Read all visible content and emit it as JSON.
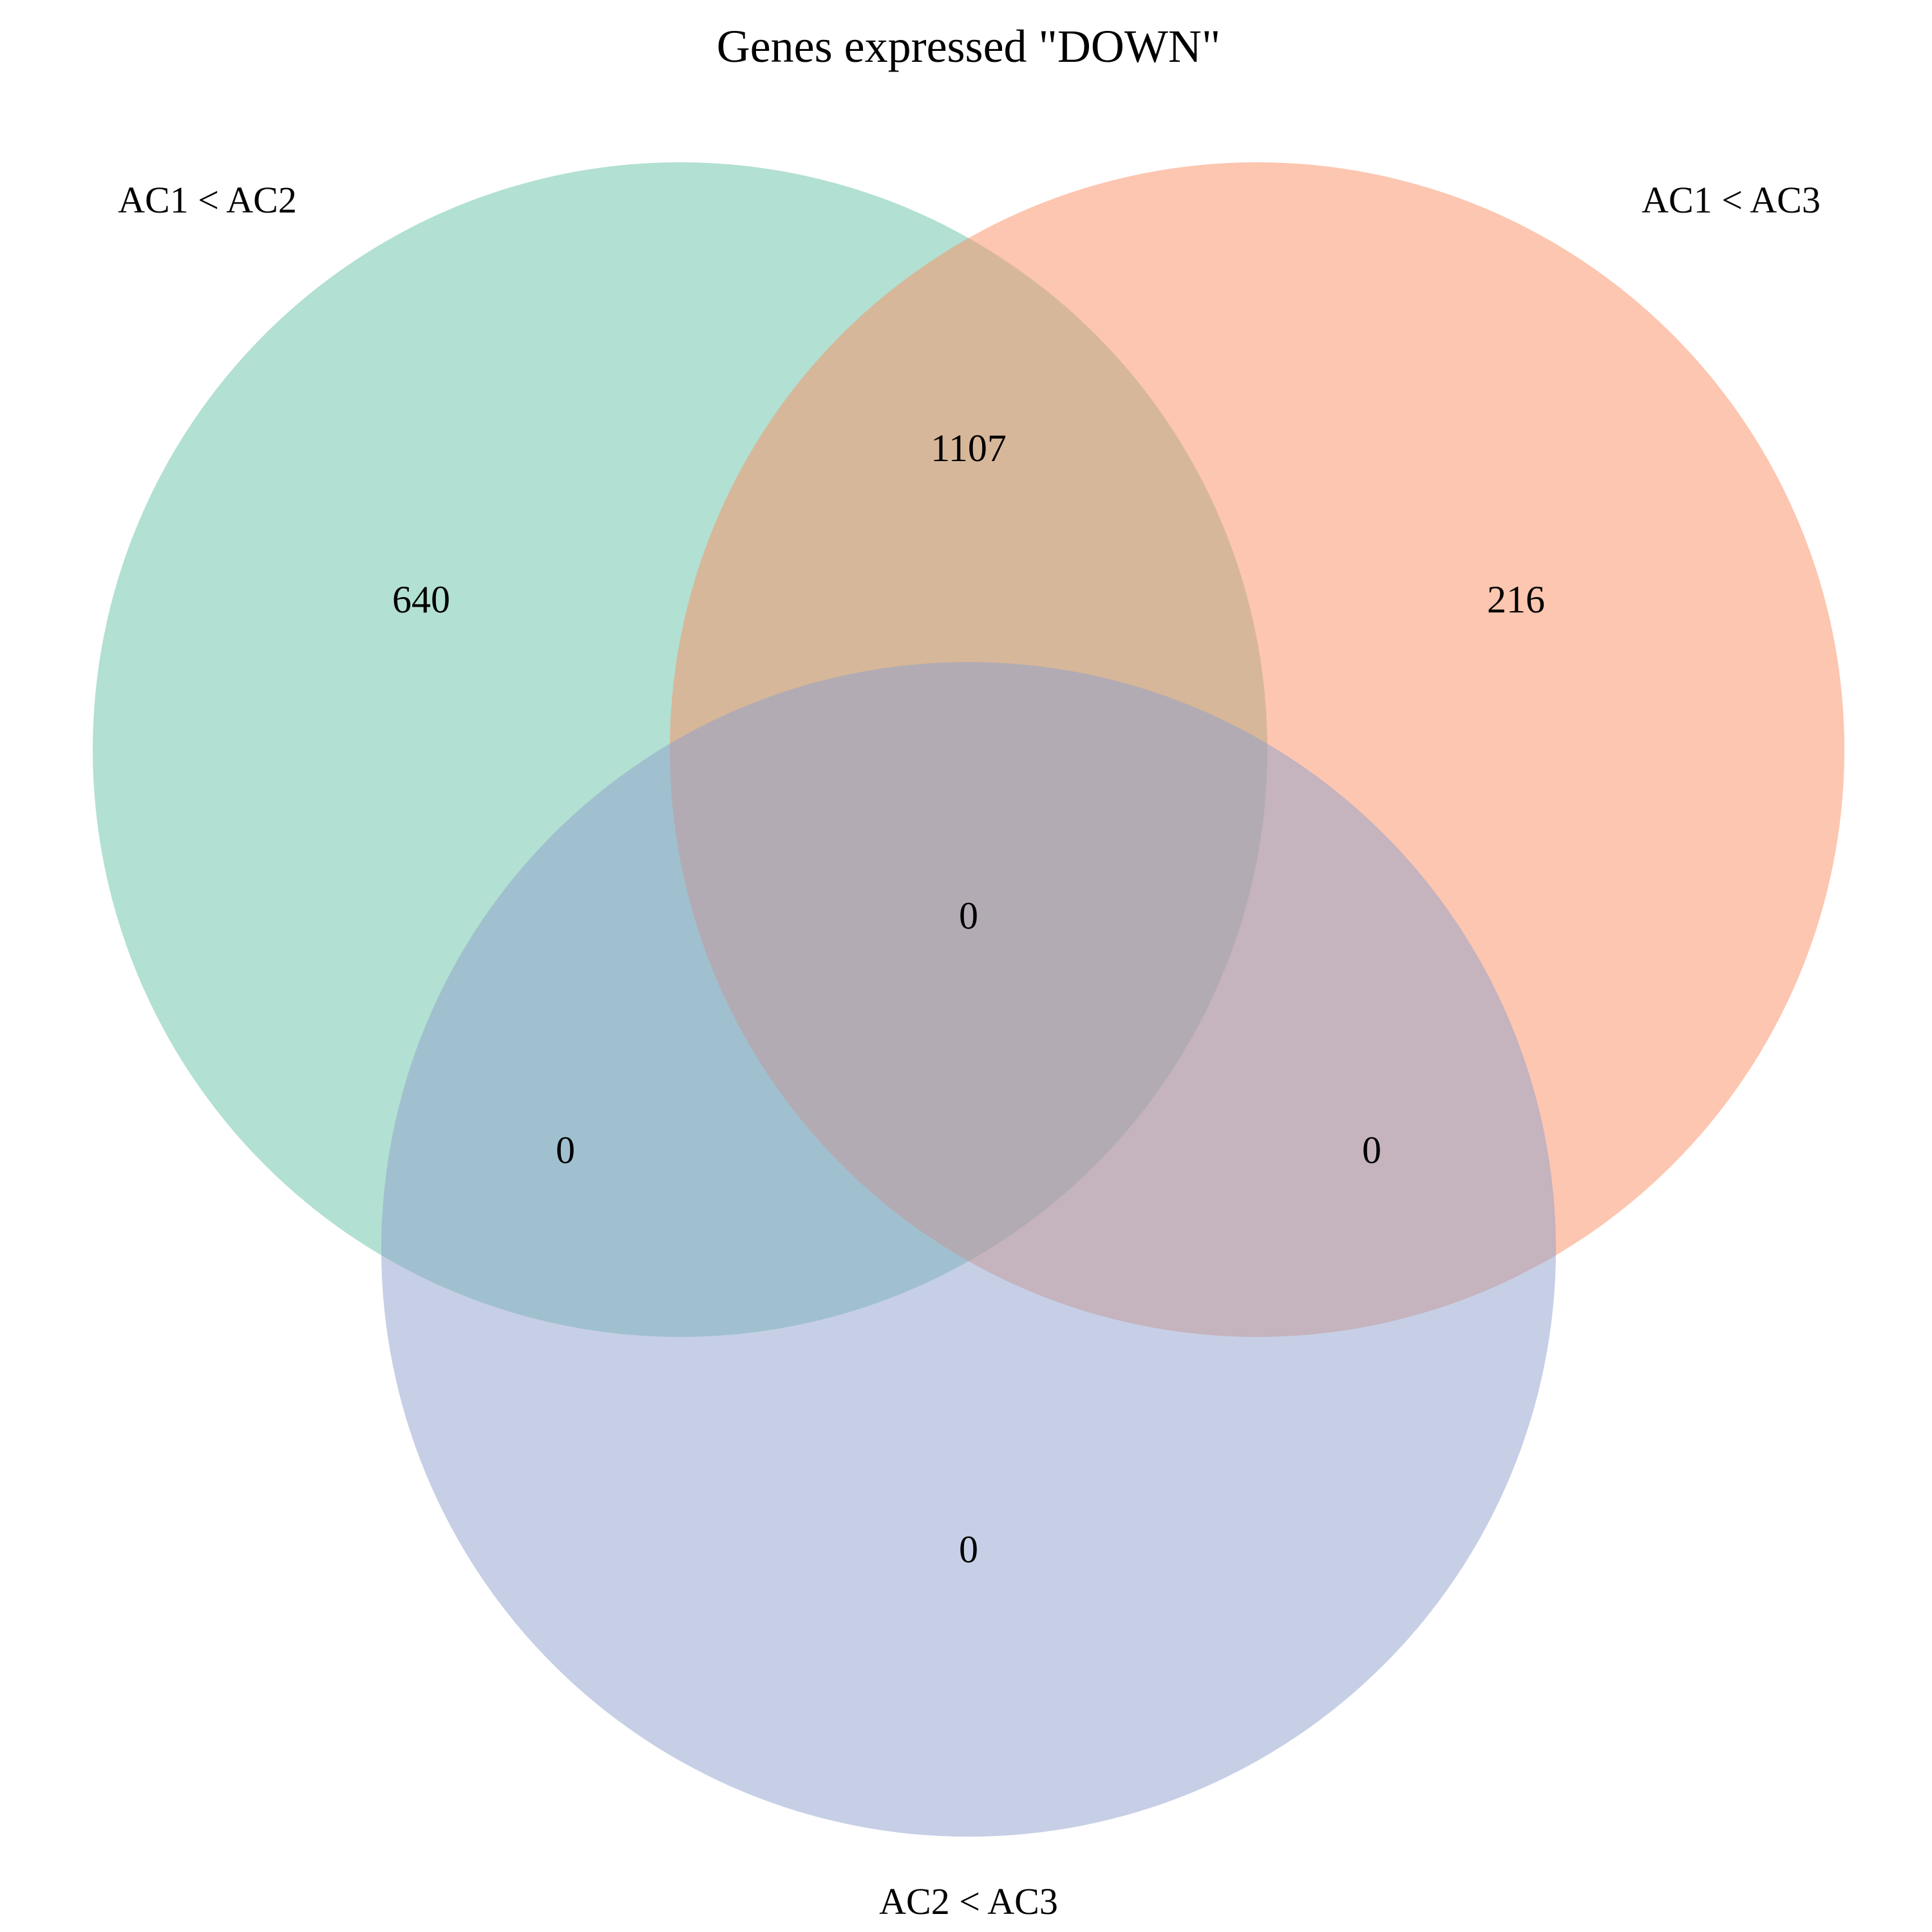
{
  "title": "Genes expressed \"DOWN\"",
  "colors": {
    "set_a": "#66c2a5",
    "set_b": "#fc8d62",
    "set_c": "#8da0cb"
  },
  "fill_opacity": 0.5,
  "sets": [
    {
      "id": "A",
      "label": "AC1 < AC2"
    },
    {
      "id": "B",
      "label": "AC1 < AC3"
    },
    {
      "id": "C",
      "label": "AC2 < AC3"
    }
  ],
  "counts": {
    "A_only": "640",
    "B_only": "216",
    "C_only": "0",
    "AB": "1107",
    "AC": "0",
    "BC": "0",
    "ABC": "0"
  }
}
